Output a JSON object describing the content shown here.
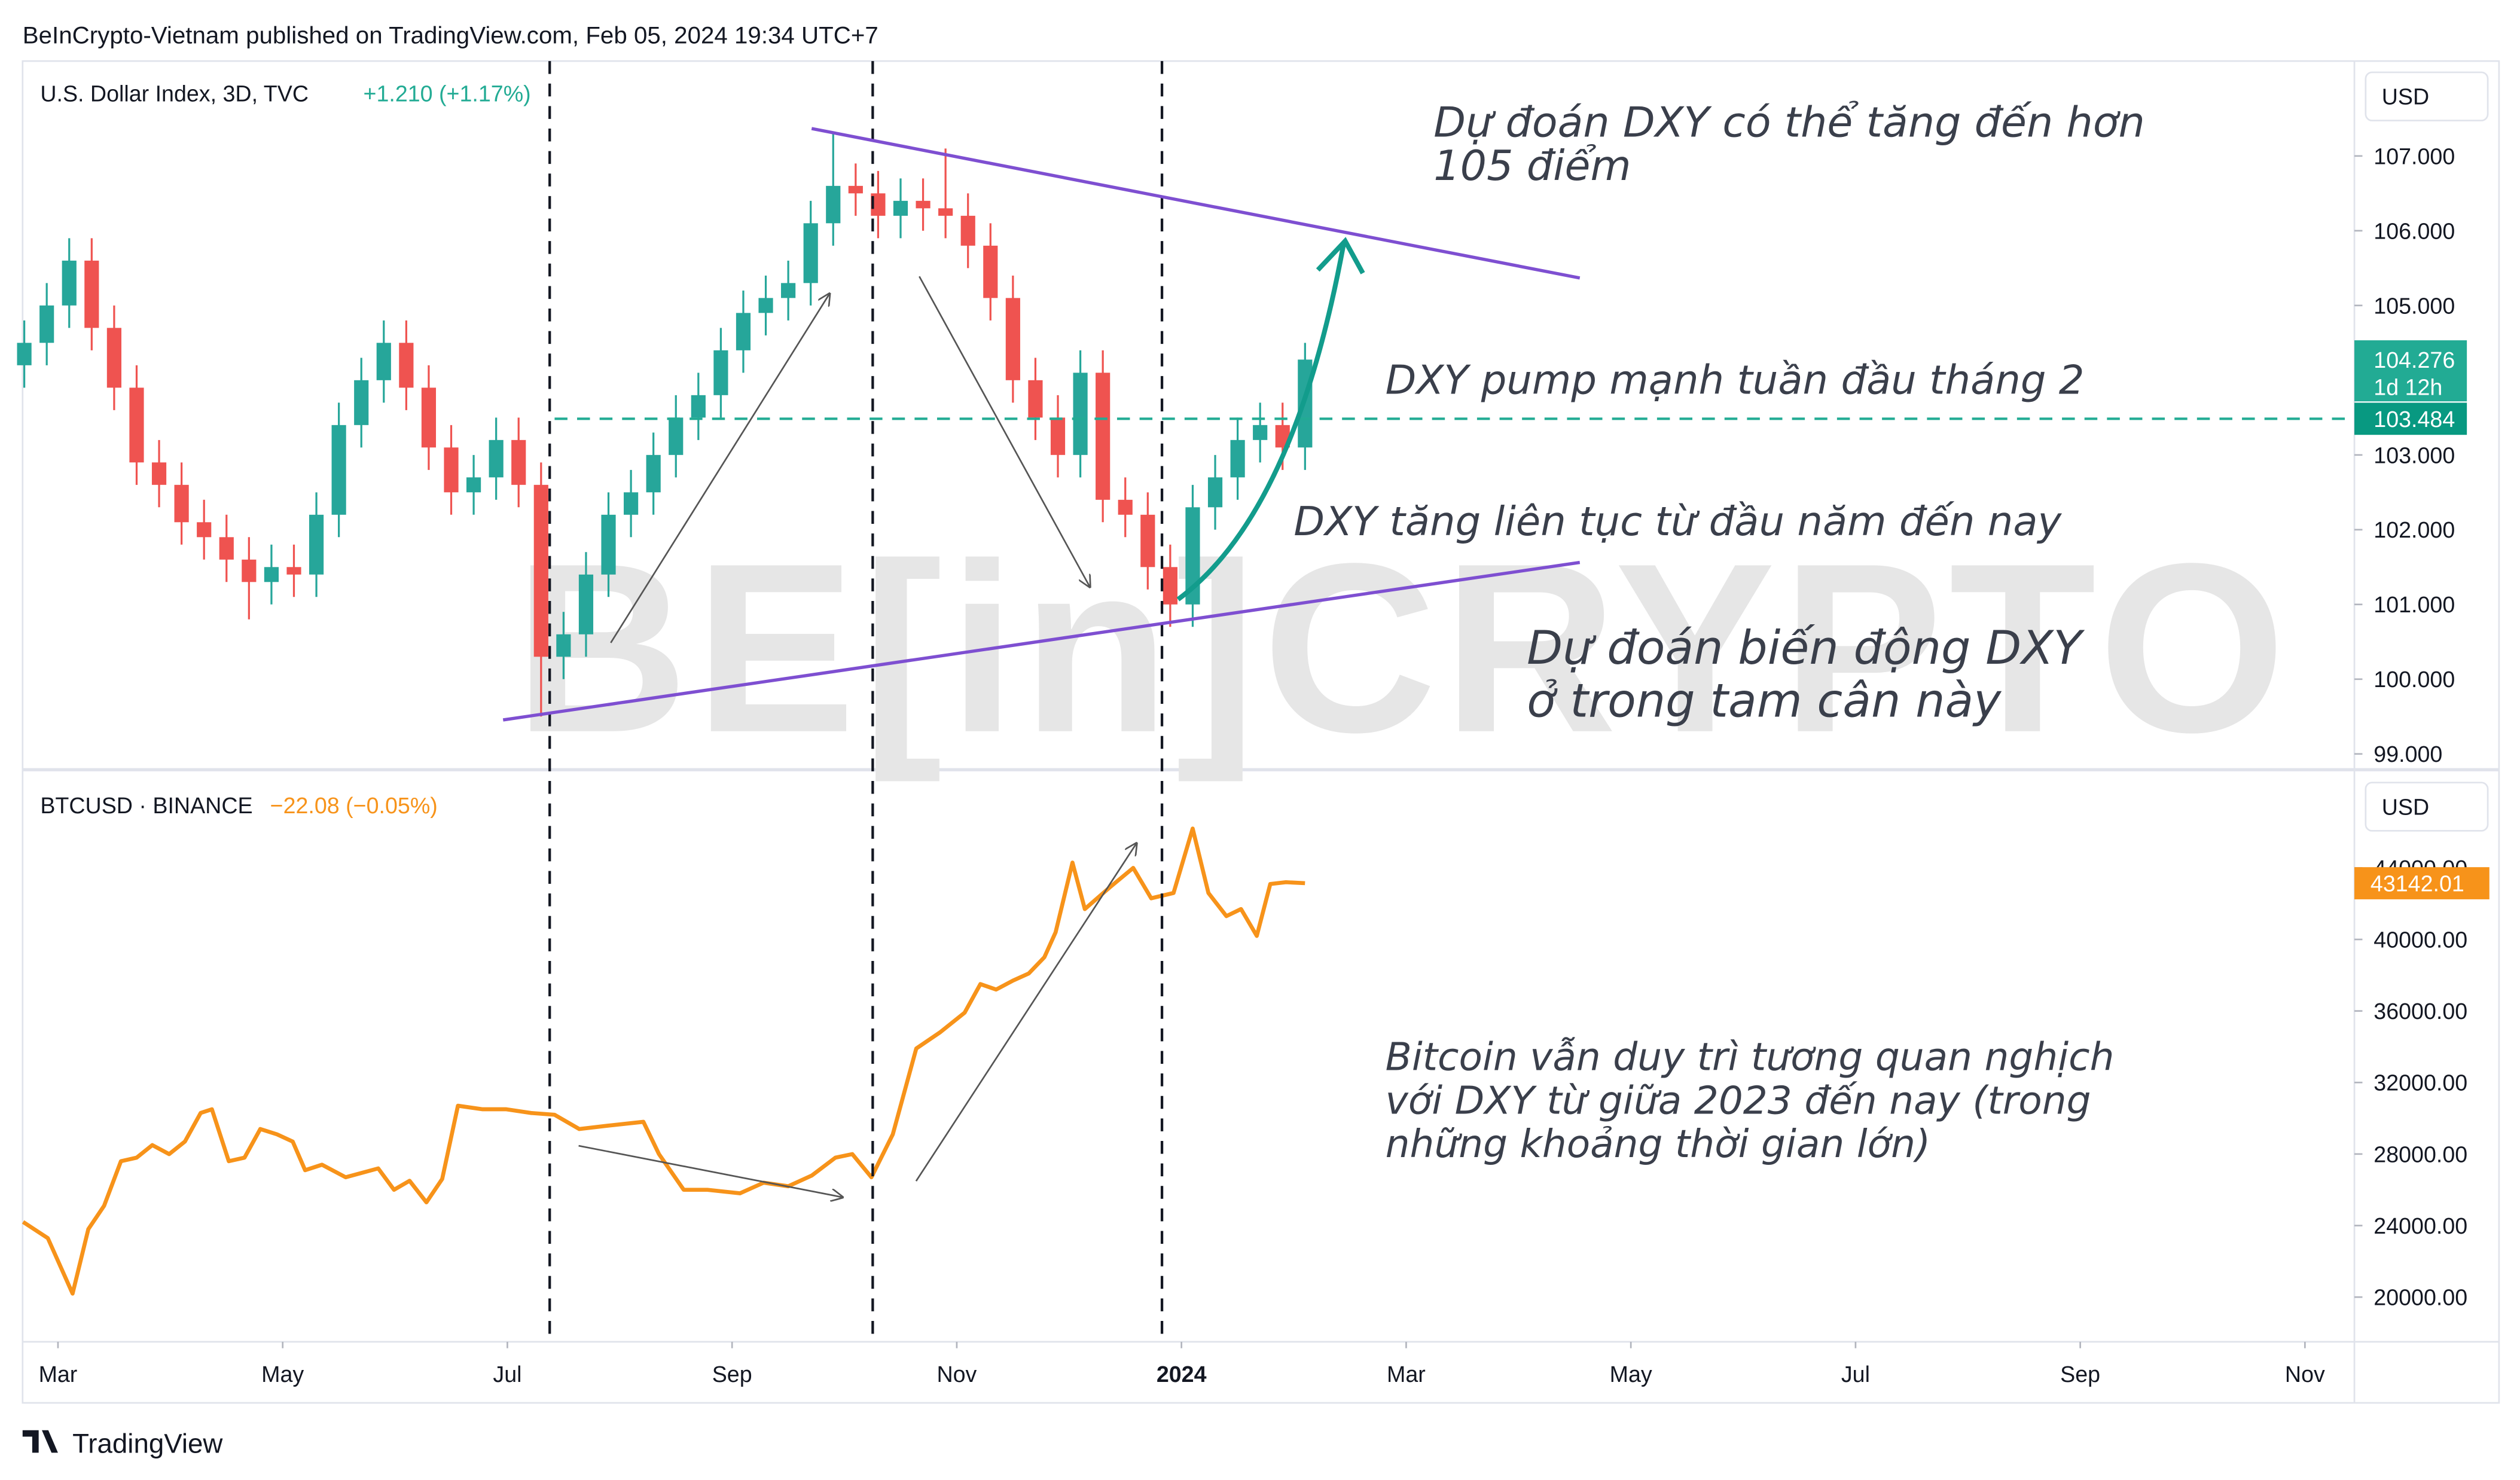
{
  "header": "BeInCrypto-Vietnam published on TradingView.com, Feb 05, 2024 19:34 UTC+7",
  "footer": "TradingView",
  "watermark": "BE[in]CRYPTO",
  "annotations": [
    {
      "lines": [
        "Dự đoán DXY có thể tăng đến hơn",
        "105 điểm"
      ]
    },
    {
      "lines": [
        "DXY pump mạnh tuần đầu tháng 2"
      ]
    },
    {
      "lines": [
        "DXY tăng liên tục từ đầu năm đến nay"
      ]
    },
    {
      "lines": [
        "Dự đoán biến động DXY",
        "ở trong tam cân này"
      ]
    },
    {
      "lines": [
        "Bitcoin vẫn duy trì tương quan nghịch",
        "với DXY từ giữa 2023 đến nay (trong",
        "những khoảng thời gian lớn)"
      ]
    }
  ],
  "chart_data": [
    {
      "type": "candlestick",
      "title": "U.S. Dollar Index, 3D, TVC",
      "change": "+1.210 (+1.17%)",
      "currency": "USD",
      "up_color": "#26a69a",
      "down_color": "#ef5350",
      "change_color": "#22ab94",
      "xlim": [
        1.685,
        22.44
      ],
      "ylim": [
        98.81,
        108.27
      ],
      "yticks": [
        {
          "value": 99,
          "label": "99.000"
        },
        {
          "value": 100,
          "label": "100.000"
        },
        {
          "value": 101,
          "label": "101.000"
        },
        {
          "value": 102,
          "label": "102.000"
        },
        {
          "value": 103,
          "label": "103.000"
        },
        {
          "value": 104,
          "label": "104.000"
        },
        {
          "value": 105,
          "label": "105.000"
        },
        {
          "value": 106,
          "label": "106.000"
        },
        {
          "value": 107,
          "label": "107.000"
        }
      ],
      "price_line": 103.484,
      "countdown": "1d 12h",
      "x": [
        1.7,
        1.9,
        2.1,
        2.3,
        2.5,
        2.7,
        2.9,
        3.1,
        3.3,
        3.5,
        3.7,
        3.9,
        4.1,
        4.3,
        4.5,
        4.7,
        4.9,
        5.1,
        5.3,
        5.5,
        5.7,
        5.9,
        6.1,
        6.3,
        6.5,
        6.7,
        6.9,
        7.1,
        7.3,
        7.5,
        7.7,
        7.9,
        8.1,
        8.3,
        8.5,
        8.7,
        8.9,
        9.1,
        9.3,
        9.5,
        9.7,
        9.9,
        10.1,
        10.3,
        10.5,
        10.7,
        10.9,
        11.1,
        11.3,
        11.5,
        11.7,
        11.9,
        12.1,
        12.3,
        12.5,
        12.7,
        12.9,
        13.1
      ],
      "open": [
        104.2,
        104.5,
        105.0,
        105.6,
        104.7,
        103.9,
        102.9,
        102.6,
        102.1,
        101.9,
        101.6,
        101.3,
        101.5,
        101.4,
        102.2,
        103.4,
        104.0,
        104.5,
        103.9,
        103.1,
        102.5,
        102.7,
        103.2,
        102.6,
        100.3,
        100.6,
        101.4,
        102.2,
        102.5,
        103.0,
        103.5,
        103.8,
        104.4,
        104.9,
        105.1,
        105.3,
        106.1,
        106.6,
        106.5,
        106.2,
        106.4,
        106.3,
        106.2,
        105.8,
        105.1,
        104.0,
        103.5,
        103.0,
        104.1,
        102.4,
        102.2,
        101.5,
        101.0,
        102.3,
        102.7,
        103.2,
        103.4,
        103.1
      ],
      "high": [
        104.8,
        105.3,
        105.9,
        105.9,
        105.0,
        104.2,
        103.2,
        102.9,
        102.4,
        102.2,
        101.9,
        101.8,
        101.8,
        102.5,
        103.7,
        104.3,
        104.8,
        104.8,
        104.2,
        103.4,
        103.0,
        103.5,
        103.5,
        102.9,
        100.9,
        101.7,
        102.5,
        102.8,
        103.3,
        103.8,
        104.1,
        104.7,
        105.2,
        105.4,
        105.6,
        106.4,
        107.3,
        106.9,
        106.8,
        106.7,
        106.7,
        107.1,
        106.5,
        106.1,
        105.4,
        104.3,
        103.8,
        104.4,
        104.4,
        102.7,
        102.5,
        101.8,
        102.6,
        103.0,
        103.5,
        103.7,
        103.7,
        104.5
      ],
      "low": [
        103.9,
        104.2,
        104.7,
        104.4,
        103.6,
        102.6,
        102.3,
        101.8,
        101.6,
        101.3,
        100.8,
        101.0,
        101.1,
        101.1,
        101.9,
        103.1,
        103.7,
        103.6,
        102.8,
        102.2,
        102.2,
        102.4,
        102.3,
        99.5,
        100.0,
        100.3,
        101.1,
        101.9,
        102.2,
        102.7,
        103.2,
        103.5,
        104.1,
        104.6,
        104.8,
        105.0,
        105.8,
        106.2,
        105.9,
        105.9,
        106.0,
        105.9,
        105.5,
        104.8,
        103.7,
        103.2,
        102.7,
        102.7,
        102.1,
        101.9,
        101.2,
        100.7,
        100.7,
        102.0,
        102.4,
        102.9,
        102.8,
        102.8
      ],
      "close": [
        104.5,
        105.0,
        105.6,
        104.7,
        103.9,
        102.9,
        102.6,
        102.1,
        101.9,
        101.6,
        101.3,
        101.5,
        101.4,
        102.2,
        103.4,
        104.0,
        104.5,
        103.9,
        103.1,
        102.5,
        102.7,
        103.2,
        102.6,
        100.3,
        100.6,
        101.4,
        102.2,
        102.5,
        103.0,
        103.5,
        103.8,
        104.4,
        104.9,
        105.1,
        105.3,
        106.1,
        106.6,
        106.5,
        106.2,
        106.4,
        106.3,
        106.2,
        105.8,
        105.1,
        104.0,
        103.5,
        103.0,
        104.1,
        102.4,
        102.2,
        101.5,
        101.0,
        102.3,
        102.7,
        103.2,
        103.4,
        103.1,
        104.276
      ]
    },
    {
      "type": "line",
      "title": "BTCUSD · BINANCE",
      "change": "−22.08 (−0.05%)",
      "currency": "USD",
      "color": "#f7931a",
      "xlim": [
        1.685,
        22.44
      ],
      "ylim": [
        17500,
        49400
      ],
      "yticks": [
        {
          "value": 20000,
          "label": "20000.00"
        },
        {
          "value": 24000,
          "label": "24000.00"
        },
        {
          "value": 28000,
          "label": "28000.00"
        },
        {
          "value": 32000,
          "label": "32000.00"
        },
        {
          "value": 36000,
          "label": "36000.00"
        },
        {
          "value": 40000,
          "label": "40000.00"
        },
        {
          "value": 44000,
          "label": "44000.00"
        }
      ],
      "xticks": [
        {
          "value": 2,
          "label": "Mar"
        },
        {
          "value": 4,
          "label": "May"
        },
        {
          "value": 6,
          "label": "Jul"
        },
        {
          "value": 8,
          "label": "Sep"
        },
        {
          "value": 10,
          "label": "Nov"
        },
        {
          "value": 12,
          "label": "2024"
        },
        {
          "value": 14,
          "label": "Mar"
        },
        {
          "value": 16,
          "label": "May"
        },
        {
          "value": 18,
          "label": "Jul"
        },
        {
          "value": 20,
          "label": "Sep"
        },
        {
          "value": 22,
          "label": "Nov"
        }
      ],
      "x": [
        1.69,
        1.91,
        2.13,
        2.27,
        2.41,
        2.56,
        2.7,
        2.84,
        2.99,
        3.13,
        3.27,
        3.37,
        3.52,
        3.66,
        3.8,
        3.95,
        4.09,
        4.2,
        4.35,
        4.56,
        4.85,
        4.99,
        5.13,
        5.28,
        5.42,
        5.56,
        5.78,
        5.99,
        6.21,
        6.42,
        6.64,
        6.92,
        7.21,
        7.35,
        7.57,
        7.78,
        8.07,
        8.28,
        8.5,
        8.71,
        8.92,
        9.07,
        9.24,
        9.43,
        9.64,
        9.85,
        10.07,
        10.21,
        10.35,
        10.5,
        10.64,
        10.78,
        10.88,
        11.03,
        11.14,
        11.36,
        11.57,
        11.73,
        11.93,
        12.1,
        12.24,
        12.4,
        12.53,
        12.67,
        12.79,
        12.93,
        13.1
      ],
      "values": [
        24200,
        23300,
        20200,
        23800,
        25100,
        27600,
        27800,
        28500,
        28000,
        28700,
        30300,
        30500,
        27600,
        27800,
        29400,
        29100,
        28700,
        27100,
        27400,
        26700,
        27200,
        26000,
        26500,
        25300,
        26600,
        30700,
        30500,
        30500,
        30300,
        30200,
        29400,
        29600,
        29800,
        28000,
        26000,
        26000,
        25800,
        26400,
        26200,
        26800,
        27800,
        28000,
        26700,
        29100,
        33900,
        34800,
        35900,
        37500,
        37200,
        37700,
        38100,
        39000,
        40400,
        44300,
        41700,
        42900,
        44000,
        42300,
        42600,
        46200,
        42600,
        41300,
        41700,
        40200,
        43100,
        43200,
        43142.01
      ]
    }
  ]
}
